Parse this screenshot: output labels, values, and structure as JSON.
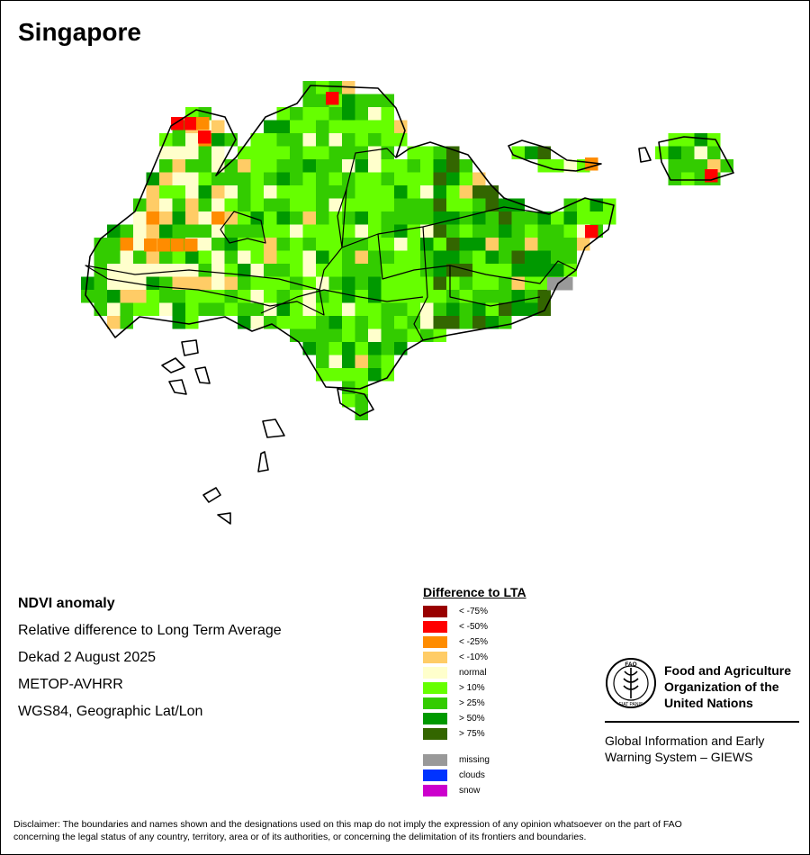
{
  "title": "Singapore",
  "info": {
    "heading": "NDVI anomaly",
    "line1": "Relative difference to Long Term Average",
    "line2": "Dekad 2 August 2025",
    "line3": "METOP-AVHRR",
    "line4": "WGS84, Geographic Lat/Lon"
  },
  "legend": {
    "title": "Difference to LTA",
    "items": [
      {
        "label": "< -75%",
        "color": "#990000"
      },
      {
        "label": "< -50%",
        "color": "#ff0000"
      },
      {
        "label": "< -25%",
        "color": "#ff8c00"
      },
      {
        "label": "< -10%",
        "color": "#ffcc66"
      },
      {
        "label": "normal",
        "color": "#ffffcc"
      },
      {
        "label": "> 10%",
        "color": "#66ff00"
      },
      {
        "label": "> 25%",
        "color": "#33cc00"
      },
      {
        "label": "> 50%",
        "color": "#009900"
      },
      {
        "label": "> 75%",
        "color": "#336600"
      }
    ],
    "extra": [
      {
        "label": "missing",
        "color": "#999999"
      },
      {
        "label": "clouds",
        "color": "#0033ff"
      },
      {
        "label": "snow",
        "color": "#cc00cc"
      }
    ]
  },
  "org": {
    "logo_text": "FAO",
    "logo_motto": "FIAT PANIS",
    "name_line1": "Food and Agriculture",
    "name_line2": "Organization of the",
    "name_line3": "United Nations",
    "giews_line1": "Global Information and Early",
    "giews_line2": "Warning System – GIEWS"
  },
  "disclaimer_line1": "Disclaimer: The boundaries and names shown and the designations used on this map do not imply the expression of any opinion whatsoever on the part of FAO",
  "disclaimer_line2": "concerning the legal status of any country, territory, area or of its authorities, or concerning the delimitation of its frontiers and boundaries."
}
